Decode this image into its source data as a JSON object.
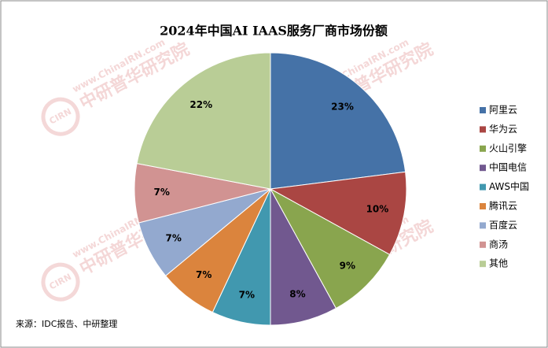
{
  "chart_data": {
    "type": "pie",
    "title": "2024年中国AI IAAS服务厂商市场份额",
    "categories": [
      "阿里云",
      "华为云",
      "火山引擎",
      "中国电信",
      "AWS中国",
      "腾讯云",
      "百度云",
      "商汤",
      "其他"
    ],
    "values": [
      23,
      10,
      9,
      8,
      7,
      7,
      7,
      7,
      22
    ],
    "value_labels": [
      "23%",
      "10%",
      "9%",
      "8%",
      "7%",
      "7%",
      "7%",
      "7%",
      "22%"
    ],
    "colors": [
      "#4572a7",
      "#aa4643",
      "#89a54e",
      "#71588f",
      "#4198af",
      "#db843d",
      "#93a9cf",
      "#d19392",
      "#b9cd96"
    ],
    "legend": "right",
    "source": "来源：IDC报告、中研整理",
    "watermark": {
      "url": "www.ChinaIRN.com",
      "name": "中研普华研究院",
      "logo": "CIRN"
    }
  }
}
